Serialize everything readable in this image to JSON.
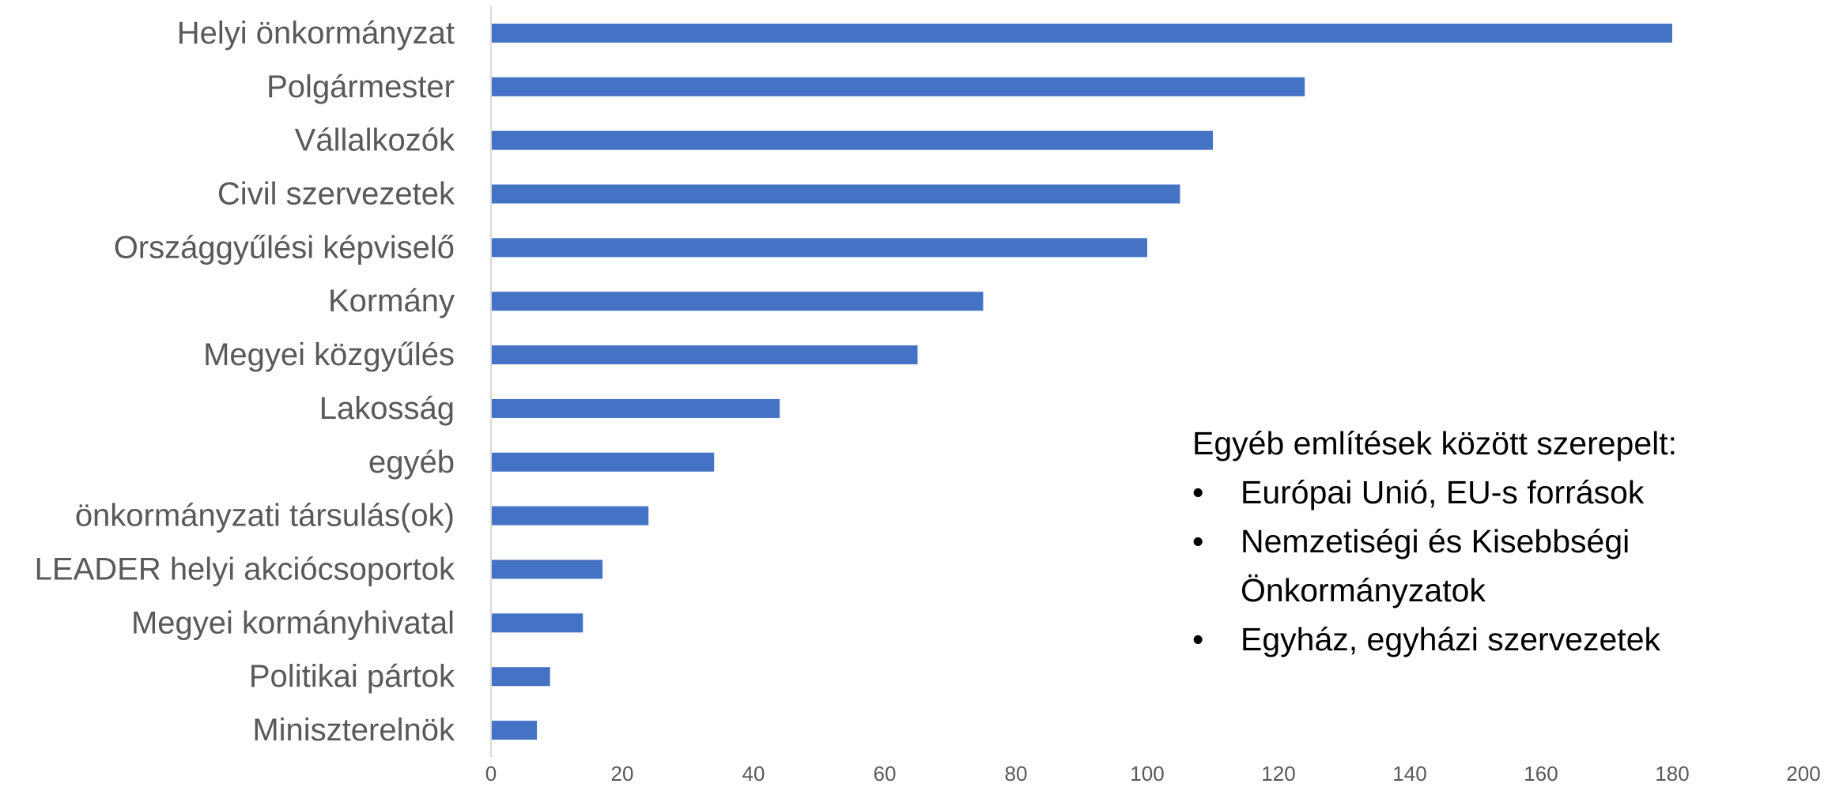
{
  "chart_data": {
    "type": "bar",
    "orientation": "horizontal",
    "categories": [
      "Helyi önkormányzat",
      "Polgármester",
      "Vállalkozók",
      "Civil szervezetek",
      "Országgyűlési képviselő",
      "Kormány",
      "Megyei közgyűlés",
      "Lakosság",
      "egyéb",
      "önkormányzati társulás(ok)",
      "LEADER helyi akciócsoportok",
      "Megyei kormányhivatal",
      "Politikai pártok",
      "Miniszterelnök"
    ],
    "values": [
      180,
      124,
      110,
      105,
      100,
      75,
      65,
      44,
      34,
      24,
      17,
      14,
      9,
      7
    ],
    "xlim": [
      0,
      200
    ],
    "xticks": [
      "0",
      "20",
      "40",
      "60",
      "80",
      "100",
      "120",
      "140",
      "160",
      "180",
      "200"
    ],
    "title": "",
    "xlabel": "",
    "ylabel": "",
    "grid": false,
    "legend": "none",
    "bar_color": "#4472C4"
  },
  "annotation": {
    "heading": "Egyéb említések között szerepelt:",
    "bullet_symbol": "•",
    "items": [
      "Európai Unió, EU-s források",
      "Nemzetiségi és Kisebbségi Önkormányzatok",
      "Egyház, egyházi szervezetek"
    ]
  }
}
